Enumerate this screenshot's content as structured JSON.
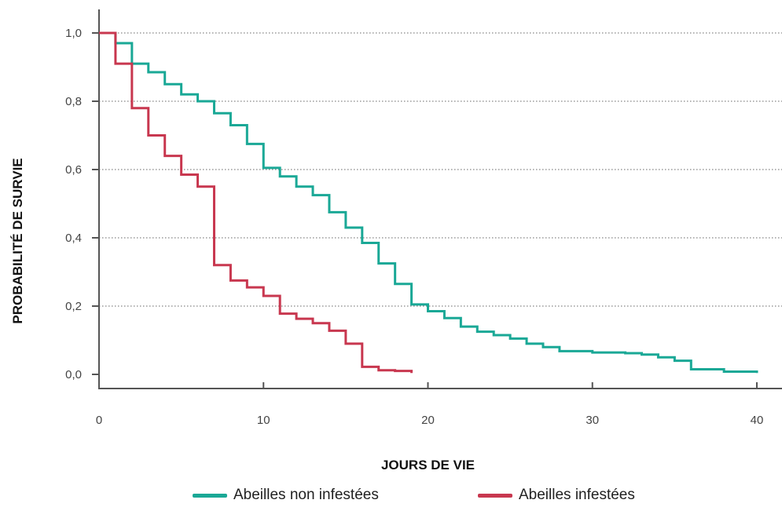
{
  "chart_data": {
    "type": "line",
    "step": true,
    "xlabel": "JOURS DE VIE",
    "ylabel": "PROBABILITÉ DE SURVIE",
    "xlim": [
      0,
      41
    ],
    "ylim": [
      -0.04,
      1.07
    ],
    "xticks": [
      0,
      10,
      20,
      30,
      40
    ],
    "yticks": [
      0.0,
      0.2,
      0.4,
      0.6,
      0.8,
      1.0
    ],
    "xtick_labels": [
      "0",
      "10",
      "20",
      "30",
      "40"
    ],
    "ytick_labels": [
      "0,0",
      "0,2",
      "0,4",
      "0,6",
      "0,8",
      "1,0"
    ],
    "grid": "horizontal-dotted",
    "legend_position": "bottom",
    "series": [
      {
        "name": "Abeilles non infestées",
        "color": "#1aa896",
        "x": [
          0,
          1,
          2,
          3,
          4,
          5,
          6,
          7,
          8,
          9,
          10,
          11,
          12,
          13,
          14,
          15,
          16,
          17,
          18,
          19,
          20,
          21,
          22,
          23,
          24,
          25,
          26,
          27,
          28,
          29,
          30,
          31,
          32,
          33,
          34,
          35,
          36,
          37,
          38,
          39,
          40
        ],
        "y": [
          1.0,
          0.97,
          0.91,
          0.885,
          0.85,
          0.82,
          0.8,
          0.765,
          0.73,
          0.675,
          0.605,
          0.58,
          0.55,
          0.525,
          0.475,
          0.43,
          0.385,
          0.325,
          0.265,
          0.205,
          0.185,
          0.165,
          0.14,
          0.125,
          0.115,
          0.105,
          0.09,
          0.08,
          0.068,
          0.068,
          0.064,
          0.064,
          0.062,
          0.058,
          0.05,
          0.04,
          0.015,
          0.015,
          0.008,
          0.008,
          0.004
        ]
      },
      {
        "name": "Abeilles infestées",
        "color": "#c8374f",
        "x": [
          0,
          1,
          2,
          3,
          4,
          5,
          6,
          7,
          8,
          9,
          10,
          11,
          12,
          13,
          14,
          15,
          16,
          17,
          18,
          19
        ],
        "y": [
          1.0,
          0.91,
          0.78,
          0.7,
          0.64,
          0.585,
          0.55,
          0.32,
          0.275,
          0.255,
          0.23,
          0.178,
          0.163,
          0.15,
          0.128,
          0.09,
          0.022,
          0.012,
          0.01,
          0.004
        ]
      }
    ]
  }
}
